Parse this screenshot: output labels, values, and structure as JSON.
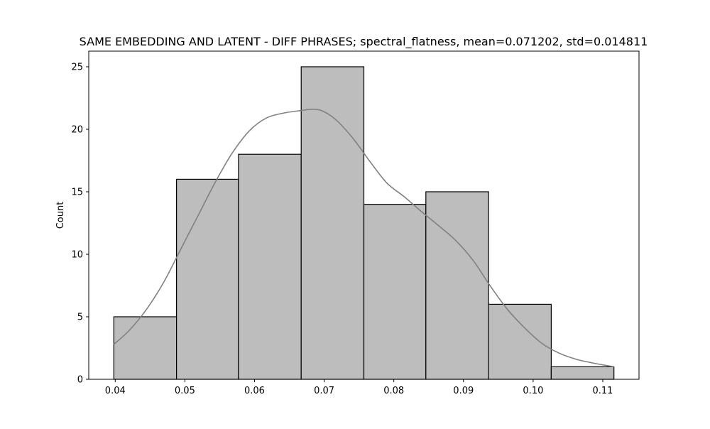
{
  "chart_data": {
    "type": "bar",
    "subtype": "histogram",
    "title": "SAME EMBEDDING AND LATENT - DIFF PHRASES; spectral_flatness, mean=0.071202, std=0.014811",
    "xlabel": "",
    "ylabel": "Count",
    "xlim": [
      0.0362,
      0.1152
    ],
    "ylim": [
      0,
      26.25
    ],
    "x_ticks": [
      {
        "value": 0.04,
        "label": "0.04"
      },
      {
        "value": 0.05,
        "label": "0.05"
      },
      {
        "value": 0.06,
        "label": "0.06"
      },
      {
        "value": 0.07,
        "label": "0.07"
      },
      {
        "value": 0.08,
        "label": "0.08"
      },
      {
        "value": 0.09,
        "label": "0.09"
      },
      {
        "value": 0.1,
        "label": "0.10"
      },
      {
        "value": 0.11,
        "label": "0.11"
      }
    ],
    "y_ticks": [
      {
        "value": 0,
        "label": "0"
      },
      {
        "value": 5,
        "label": "5"
      },
      {
        "value": 10,
        "label": "10"
      },
      {
        "value": 15,
        "label": "15"
      },
      {
        "value": 20,
        "label": "20"
      },
      {
        "value": 25,
        "label": "25"
      }
    ],
    "bins": [
      {
        "x0": 0.0398,
        "x1": 0.0488,
        "count": 5
      },
      {
        "x0": 0.0488,
        "x1": 0.0577,
        "count": 16
      },
      {
        "x0": 0.0577,
        "x1": 0.0667,
        "count": 18
      },
      {
        "x0": 0.0667,
        "x1": 0.0757,
        "count": 25
      },
      {
        "x0": 0.0757,
        "x1": 0.0846,
        "count": 14
      },
      {
        "x0": 0.0846,
        "x1": 0.0936,
        "count": 15
      },
      {
        "x0": 0.0936,
        "x1": 0.1026,
        "count": 6
      },
      {
        "x0": 0.1026,
        "x1": 0.1116,
        "count": 1
      }
    ],
    "kde": {
      "x": [
        0.0398,
        0.042,
        0.0445,
        0.047,
        0.0494,
        0.0519,
        0.0544,
        0.0568,
        0.0593,
        0.0617,
        0.0642,
        0.0667,
        0.0681,
        0.0696,
        0.0716,
        0.0741,
        0.0766,
        0.079,
        0.0815,
        0.084,
        0.0864,
        0.0889,
        0.0914,
        0.0938,
        0.0963,
        0.0988,
        0.1012,
        0.1037,
        0.1062,
        0.1086,
        0.1116
      ],
      "y": [
        2.8,
        3.9,
        5.6,
        7.8,
        10.4,
        13.1,
        15.8,
        18.1,
        19.9,
        20.9,
        21.3,
        21.5,
        21.6,
        21.5,
        20.8,
        19.3,
        17.4,
        15.7,
        14.6,
        13.4,
        12.3,
        11.1,
        9.5,
        7.5,
        5.6,
        4.1,
        2.9,
        2.1,
        1.6,
        1.3,
        1.0
      ]
    },
    "colors": {
      "bar_fill": "#bdbdbd",
      "bar_edge": "#000000",
      "kde_line": "#808080",
      "axes": "#000000"
    },
    "grid": false,
    "legend": "none"
  }
}
